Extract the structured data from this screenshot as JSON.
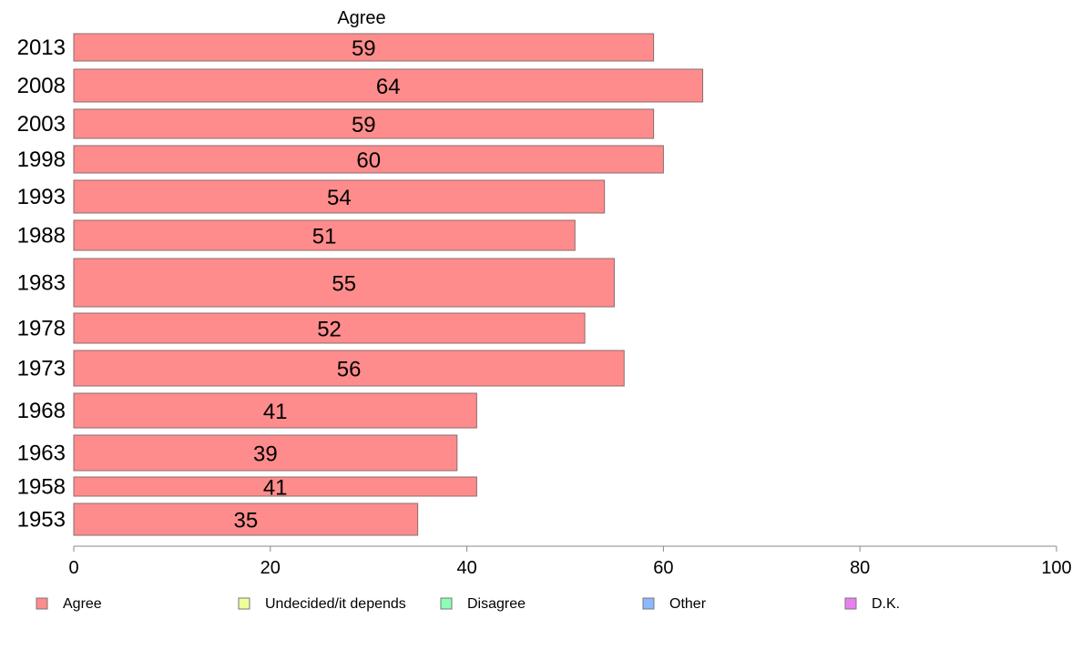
{
  "chart_data": {
    "type": "bar",
    "orientation": "horizontal",
    "title": "Agree",
    "categories": [
      "2013",
      "2008",
      "2003",
      "1998",
      "1993",
      "1988",
      "1983",
      "1978",
      "1973",
      "1968",
      "1963",
      "1958",
      "1953"
    ],
    "series": [
      {
        "name": "Agree",
        "values": [
          59,
          64,
          59,
          60,
          54,
          51,
          55,
          52,
          56,
          41,
          39,
          41,
          35
        ]
      }
    ],
    "xlim": [
      0,
      100
    ],
    "xticks": [
      "0",
      "20",
      "40",
      "60",
      "80",
      "100"
    ],
    "grid": false,
    "legend": {
      "placement": "bottom",
      "entries": [
        {
          "label": "Agree",
          "color": "#ff8c8c"
        },
        {
          "label": "Undecided/it depends",
          "color": "#f0ff9a"
        },
        {
          "label": "Disagree",
          "color": "#8cffb4"
        },
        {
          "label": "Other",
          "color": "#8cb8ff"
        },
        {
          "label": "D.K.",
          "color": "#e880f0"
        }
      ]
    },
    "bar_color": "#ff8c8c"
  }
}
